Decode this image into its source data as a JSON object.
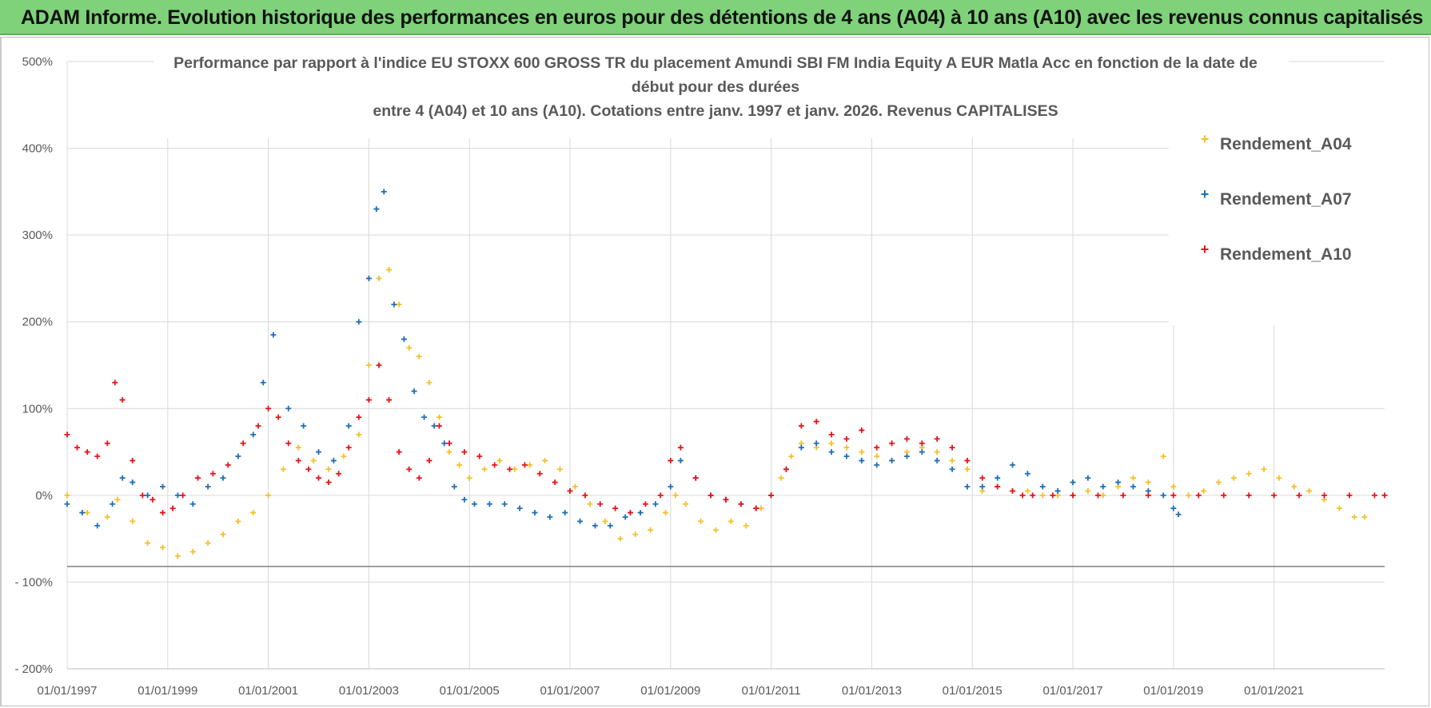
{
  "header": {
    "title": "ADAM Informe. Evolution historique des performances en euros pour des détentions de 4 ans (A04) à 10 ans (A10) avec les revenus connus capitalisés"
  },
  "colors": {
    "banner": "#7fd27a",
    "A04": "#f5c02c",
    "A07": "#1f6fb8",
    "A10": "#e8131b",
    "grid": "#d9d9d9",
    "axis": "#595959"
  },
  "chart_data": {
    "type": "scatter",
    "title_lines": [
      "Performance par rapport à l'indice EU STOXX 600 GROSS TR  du placement Amundi SBI FM India Equity A EUR Matla Acc en fonction de la date de",
      "début pour des durées",
      "entre 4 (A04) et 10 ans (A10).  Cotations entre janv. 1997 et janv. 2026. Revenus CAPITALISES"
    ],
    "xlabel": "",
    "ylabel": "",
    "xlim": [
      1997.0,
      2023.2
    ],
    "ylim": [
      -200,
      500
    ],
    "yticks": [
      500,
      400,
      300,
      200,
      100,
      0,
      -100,
      -200
    ],
    "ytick_labels": [
      "500%",
      "400%",
      "300%",
      "200%",
      "100%",
      "0%",
      "- 100%",
      "- 200%"
    ],
    "xticks": [
      1997,
      1999,
      2001,
      2003,
      2005,
      2007,
      2009,
      2011,
      2013,
      2015,
      2017,
      2019,
      2021
    ],
    "xtick_labels": [
      "01/01/1997",
      "01/01/1999",
      "01/01/2001",
      "01/01/2003",
      "01/01/2005",
      "01/01/2007",
      "01/01/2009",
      "01/01/2011",
      "01/01/2013",
      "01/01/2015",
      "01/01/2017",
      "01/01/2019",
      "01/01/2021"
    ],
    "reference_line_y": -82,
    "legend_position": "top-right",
    "series": [
      {
        "name": "Rendement_A04",
        "color": "#f5c02c",
        "x": [
          1997.0,
          1997.4,
          1997.8,
          1998.0,
          1998.3,
          1998.6,
          1998.9,
          1999.2,
          1999.5,
          1999.8,
          2000.1,
          2000.4,
          2000.7,
          2001.0,
          2001.3,
          2001.6,
          2001.9,
          2002.2,
          2002.5,
          2002.8,
          2003.0,
          2003.2,
          2003.4,
          2003.6,
          2003.8,
          2004.0,
          2004.2,
          2004.4,
          2004.6,
          2004.8,
          2005.0,
          2005.3,
          2005.6,
          2005.9,
          2006.2,
          2006.5,
          2006.8,
          2007.1,
          2007.4,
          2007.7,
          2008.0,
          2008.3,
          2008.6,
          2008.9,
          2009.1,
          2009.3,
          2009.6,
          2009.9,
          2010.2,
          2010.5,
          2010.8,
          2011.0,
          2011.2,
          2011.4,
          2011.6,
          2011.9,
          2012.2,
          2012.5,
          2012.8,
          2013.1,
          2013.4,
          2013.7,
          2014.0,
          2014.3,
          2014.6,
          2014.9,
          2015.2,
          2015.5,
          2015.8,
          2016.1,
          2016.4,
          2016.7,
          2017.0,
          2017.3,
          2017.6,
          2017.9,
          2018.2,
          2018.5,
          2018.8,
          2019.0,
          2019.3,
          2019.6,
          2019.9,
          2020.2,
          2020.5,
          2020.8,
          2021.1,
          2021.4,
          2021.7,
          2022.0,
          2022.3,
          2022.6,
          2022.8
        ],
        "y": [
          0,
          -20,
          -25,
          -5,
          -30,
          -55,
          -60,
          -70,
          -65,
          -55,
          -45,
          -30,
          -20,
          0,
          30,
          55,
          40,
          30,
          45,
          70,
          150,
          250,
          260,
          220,
          170,
          160,
          130,
          90,
          50,
          35,
          20,
          30,
          40,
          30,
          35,
          40,
          30,
          10,
          -10,
          -30,
          -50,
          -45,
          -40,
          -20,
          0,
          -10,
          -30,
          -40,
          -30,
          -35,
          -15,
          0,
          20,
          45,
          60,
          55,
          60,
          55,
          50,
          45,
          40,
          50,
          55,
          50,
          40,
          30,
          5,
          10,
          5,
          5,
          0,
          0,
          0,
          5,
          0,
          10,
          20,
          15,
          45,
          10,
          0,
          5,
          15,
          20,
          25,
          30,
          20,
          10,
          5,
          -5,
          -15,
          -25,
          -25
        ]
      },
      {
        "name": "Rendement_A07",
        "color": "#1f6fb8",
        "x": [
          1997.0,
          1997.3,
          1997.6,
          1997.9,
          1998.1,
          1998.3,
          1998.6,
          1998.9,
          1999.2,
          1999.5,
          1999.8,
          2000.1,
          2000.4,
          2000.7,
          2000.9,
          2001.1,
          2001.4,
          2001.7,
          2002.0,
          2002.3,
          2002.6,
          2002.8,
          2003.0,
          2003.15,
          2003.3,
          2003.5,
          2003.7,
          2003.9,
          2004.1,
          2004.3,
          2004.5,
          2004.7,
          2004.9,
          2005.1,
          2005.4,
          2005.7,
          2006.0,
          2006.3,
          2006.6,
          2006.9,
          2007.2,
          2007.5,
          2007.8,
          2008.1,
          2008.4,
          2008.7,
          2009.0,
          2009.2,
          2009.5,
          2009.8,
          2010.1,
          2010.4,
          2010.7,
          2011.0,
          2011.3,
          2011.6,
          2011.9,
          2012.2,
          2012.5,
          2012.8,
          2013.1,
          2013.4,
          2013.7,
          2014.0,
          2014.3,
          2014.6,
          2014.9,
          2015.2,
          2015.5,
          2015.8,
          2016.1,
          2016.4,
          2016.7,
          2017.0,
          2017.3,
          2017.6,
          2017.9,
          2018.2,
          2018.5,
          2018.8,
          2019.0,
          2019.1
        ],
        "y": [
          -10,
          -20,
          -35,
          -10,
          20,
          15,
          0,
          10,
          0,
          -10,
          10,
          20,
          45,
          70,
          130,
          185,
          100,
          80,
          50,
          40,
          80,
          200,
          250,
          330,
          350,
          220,
          180,
          120,
          90,
          80,
          60,
          10,
          -5,
          -10,
          -10,
          -10,
          -15,
          -20,
          -25,
          -20,
          -30,
          -35,
          -35,
          -25,
          -20,
          -10,
          10,
          40,
          20,
          0,
          -5,
          -10,
          -15,
          0,
          30,
          55,
          60,
          50,
          45,
          40,
          35,
          40,
          45,
          50,
          40,
          30,
          10,
          10,
          20,
          35,
          25,
          10,
          5,
          15,
          20,
          10,
          15,
          10,
          5,
          0,
          -15,
          -22
        ]
      },
      {
        "name": "Rendement_A10",
        "color": "#e8131b",
        "x": [
          1997.0,
          1997.2,
          1997.4,
          1997.6,
          1997.8,
          1997.95,
          1998.1,
          1998.3,
          1998.5,
          1998.7,
          1998.9,
          1999.1,
          1999.3,
          1999.6,
          1999.9,
          2000.2,
          2000.5,
          2000.8,
          2001.0,
          2001.2,
          2001.4,
          2001.6,
          2001.8,
          2002.0,
          2002.2,
          2002.4,
          2002.6,
          2002.8,
          2003.0,
          2003.2,
          2003.4,
          2003.6,
          2003.8,
          2004.0,
          2004.2,
          2004.4,
          2004.6,
          2004.9,
          2005.2,
          2005.5,
          2005.8,
          2006.1,
          2006.4,
          2006.7,
          2007.0,
          2007.3,
          2007.6,
          2007.9,
          2008.2,
          2008.5,
          2008.8,
          2009.0,
          2009.2,
          2009.5,
          2009.8,
          2010.1,
          2010.4,
          2010.7,
          2011.0,
          2011.3,
          2011.6,
          2011.9,
          2012.2,
          2012.5,
          2012.8,
          2013.1,
          2013.4,
          2013.7,
          2014.0,
          2014.3,
          2014.6,
          2014.9,
          2015.2,
          2015.5,
          2015.8,
          2016.0,
          2016.2,
          2016.6,
          2017.0,
          2017.5,
          2018.0,
          2018.5,
          2019.0,
          2019.5,
          2020.0,
          2020.5,
          2021.0,
          2021.5,
          2022.0,
          2022.5,
          2023.0,
          2023.2
        ],
        "y": [
          70,
          55,
          50,
          45,
          60,
          130,
          110,
          40,
          0,
          -5,
          -20,
          -15,
          0,
          20,
          25,
          35,
          60,
          80,
          100,
          90,
          60,
          40,
          30,
          20,
          15,
          25,
          55,
          90,
          110,
          150,
          110,
          50,
          30,
          20,
          40,
          80,
          60,
          50,
          45,
          35,
          30,
          35,
          25,
          15,
          5,
          0,
          -10,
          -15,
          -20,
          -10,
          0,
          40,
          55,
          20,
          0,
          -5,
          -10,
          -15,
          0,
          30,
          80,
          85,
          70,
          65,
          75,
          55,
          60,
          65,
          60,
          65,
          55,
          40,
          20,
          10,
          5,
          0,
          0,
          0,
          0,
          0,
          0,
          0,
          0,
          0,
          0,
          0,
          0,
          0,
          0,
          0,
          0,
          0
        ]
      }
    ]
  }
}
